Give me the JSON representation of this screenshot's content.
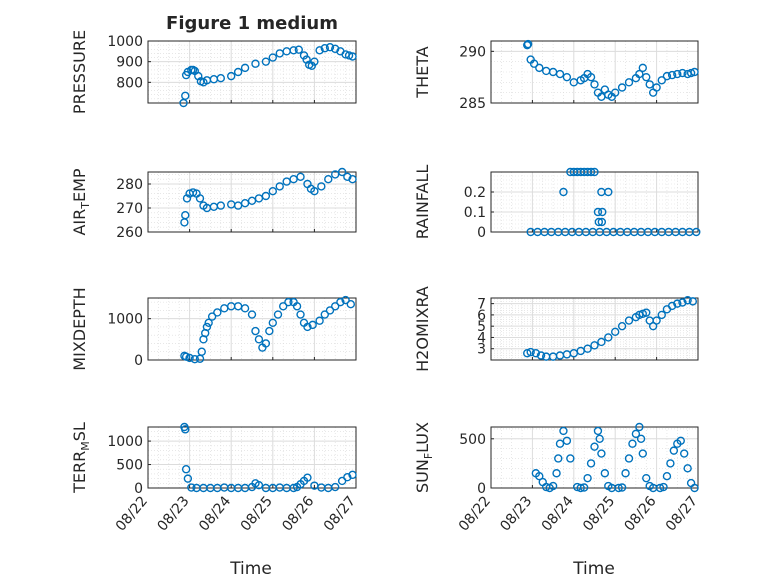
{
  "figure": {
    "title": "Figure 1 medium"
  },
  "colors": {
    "marker": "#0072BD",
    "axis": "#262626",
    "grid": "#d9d9d9"
  },
  "x_axis": {
    "range": [
      "2021-08-22",
      "2021-08-27"
    ],
    "tick_labels": [
      "08/22",
      "08/23",
      "08/24",
      "08/25",
      "08/26",
      "08/27"
    ],
    "label": "Time"
  },
  "chart_data": [
    {
      "type": "scatter",
      "name": "pressure",
      "ylabel": "PRESSURE",
      "ylim": [
        700,
        1000
      ],
      "yticks": [
        800,
        900,
        1000
      ],
      "grid": true,
      "x": [
        "08/22 20:30",
        "08/22 21:30",
        "08/22 22:00",
        "08/22 23:00",
        "08/23 01:00",
        "08/23 02:00",
        "08/23 03:00",
        "08/23 05:00",
        "08/23 06:30",
        "08/23 08:00",
        "08/23 10:00",
        "08/23 14:00",
        "08/23 18:00",
        "08/24 00:00",
        "08/24 04:00",
        "08/24 08:00",
        "08/24 14:00",
        "08/24 20:00",
        "08/25 00:00",
        "08/25 04:00",
        "08/25 08:00",
        "08/25 12:00",
        "08/25 15:00",
        "08/25 18:00",
        "08/25 19:30",
        "08/25 21:00",
        "08/25 22:30",
        "08/26 00:00",
        "08/26 03:00",
        "08/26 06:00",
        "08/26 09:00",
        "08/26 12:00",
        "08/26 15:00",
        "08/26 18:00",
        "08/26 20:00",
        "08/26 22:00"
      ],
      "y": [
        700,
        735,
        835,
        850,
        860,
        860,
        855,
        830,
        805,
        800,
        810,
        815,
        820,
        830,
        850,
        870,
        890,
        900,
        920,
        940,
        950,
        955,
        958,
        930,
        910,
        885,
        880,
        900,
        955,
        965,
        970,
        962,
        950,
        935,
        930,
        925
      ]
    },
    {
      "type": "scatter",
      "name": "theta",
      "ylabel": "THETA",
      "ylim": [
        285,
        291
      ],
      "yticks": [
        285,
        290
      ],
      "grid": true,
      "x": [
        "08/22 21:00",
        "08/22 21:30",
        "08/22 23:00",
        "08/23 01:00",
        "08/23 04:00",
        "08/23 08:00",
        "08/23 12:00",
        "08/23 16:00",
        "08/23 20:00",
        "08/24 00:00",
        "08/24 04:00",
        "08/24 06:00",
        "08/24 08:00",
        "08/24 10:00",
        "08/24 12:00",
        "08/24 14:00",
        "08/24 16:00",
        "08/24 18:00",
        "08/24 20:00",
        "08/24 22:00",
        "08/25 00:00",
        "08/25 04:00",
        "08/25 08:00",
        "08/25 12:00",
        "08/25 14:00",
        "08/25 16:00",
        "08/25 18:00",
        "08/25 20:00",
        "08/25 22:00",
        "08/26 00:00",
        "08/26 03:00",
        "08/26 06:00",
        "08/26 09:00",
        "08/26 12:00",
        "08/26 15:00",
        "08/26 18:00",
        "08/26 20:00",
        "08/26 22:00"
      ],
      "y": [
        290.6,
        290.7,
        289.2,
        288.8,
        288.4,
        288.1,
        288.0,
        287.8,
        287.5,
        287.0,
        287.2,
        287.4,
        287.8,
        287.5,
        286.8,
        286.0,
        285.6,
        286.3,
        285.8,
        285.6,
        286.0,
        286.5,
        287.0,
        287.4,
        287.8,
        288.4,
        287.5,
        286.8,
        286.0,
        286.5,
        287.2,
        287.6,
        287.7,
        287.8,
        287.9,
        287.8,
        287.9,
        288.0
      ]
    },
    {
      "type": "scatter",
      "name": "air_temp",
      "ylabel": "AIR_TEMP",
      "ylim": [
        260,
        285
      ],
      "yticks": [
        260,
        270,
        280
      ],
      "grid": true,
      "x": [
        "08/22 21:00",
        "08/22 21:30",
        "08/22 22:30",
        "08/23 00:00",
        "08/23 02:00",
        "08/23 04:00",
        "08/23 06:00",
        "08/23 08:00",
        "08/23 10:00",
        "08/23 14:00",
        "08/23 18:00",
        "08/24 00:00",
        "08/24 04:00",
        "08/24 08:00",
        "08/24 12:00",
        "08/24 16:00",
        "08/24 20:00",
        "08/25 00:00",
        "08/25 04:00",
        "08/25 08:00",
        "08/25 12:00",
        "08/25 16:00",
        "08/25 20:00",
        "08/25 22:00",
        "08/26 00:00",
        "08/26 04:00",
        "08/26 08:00",
        "08/26 12:00",
        "08/26 16:00",
        "08/26 19:00",
        "08/26 22:00"
      ],
      "y": [
        264,
        267,
        274,
        276,
        276.5,
        276,
        274,
        271,
        270,
        270.5,
        271,
        271.5,
        271,
        272,
        273,
        274,
        275,
        277,
        279,
        281,
        282,
        283,
        280,
        278,
        277,
        279,
        282,
        284,
        285,
        283,
        282
      ]
    },
    {
      "type": "scatter",
      "name": "rainfall",
      "ylabel": "RAINFALL",
      "ylim": [
        0,
        0.3
      ],
      "yticks": [
        0,
        0.1,
        0.2
      ],
      "grid": true,
      "x": [
        "08/22 23:00",
        "08/23 03:00",
        "08/23 07:00",
        "08/23 11:00",
        "08/23 15:00",
        "08/23 19:00",
        "08/23 23:00",
        "08/24 03:00",
        "08/24 07:00",
        "08/24 11:00",
        "08/24 15:00",
        "08/24 19:00",
        "08/24 23:00",
        "08/25 03:00",
        "08/25 07:00",
        "08/25 11:00",
        "08/25 15:00",
        "08/25 19:00",
        "08/25 23:00",
        "08/26 03:00",
        "08/26 07:00",
        "08/26 11:00",
        "08/26 15:00",
        "08/26 19:00",
        "08/26 23:00",
        "08/23 22:00",
        "08/24 00:00",
        "08/24 02:00",
        "08/24 04:00",
        "08/24 06:00",
        "08/24 08:00",
        "08/24 10:00",
        "08/24 12:00",
        "08/23 18:00",
        "08/24 16:00",
        "08/24 20:00",
        "08/24 14:00",
        "08/24 16:30",
        "08/24 14:30",
        "08/24 16:15"
      ],
      "y": [
        0,
        0,
        0,
        0,
        0,
        0,
        0,
        0,
        0,
        0,
        0,
        0,
        0,
        0,
        0,
        0,
        0,
        0,
        0,
        0,
        0,
        0,
        0,
        0,
        0,
        0.3,
        0.3,
        0.3,
        0.3,
        0.3,
        0.3,
        0.3,
        0.3,
        0.2,
        0.2,
        0.2,
        0.1,
        0.1,
        0.05,
        0.05
      ]
    },
    {
      "type": "scatter",
      "name": "mixdepth",
      "ylabel": "MIXDEPTH",
      "ylim": [
        0,
        1500
      ],
      "yticks": [
        0,
        1000
      ],
      "grid": true,
      "x": [
        "08/22 21:00",
        "08/22 22:00",
        "08/23 00:00",
        "08/23 03:00",
        "08/23 06:00",
        "08/23 07:00",
        "08/23 08:00",
        "08/23 09:00",
        "08/23 10:00",
        "08/23 11:00",
        "08/23 13:00",
        "08/23 16:00",
        "08/23 20:00",
        "08/24 00:00",
        "08/24 04:00",
        "08/24 08:00",
        "08/24 12:00",
        "08/24 14:00",
        "08/24 16:00",
        "08/24 18:00",
        "08/24 20:00",
        "08/24 22:00",
        "08/25 00:00",
        "08/25 03:00",
        "08/25 06:00",
        "08/25 09:00",
        "08/25 12:00",
        "08/25 14:00",
        "08/25 16:00",
        "08/25 18:00",
        "08/25 20:00",
        "08/25 23:00",
        "08/26 03:00",
        "08/26 06:00",
        "08/26 09:00",
        "08/26 12:00",
        "08/26 15:00",
        "08/26 18:00",
        "08/26 21:00"
      ],
      "y": [
        100,
        80,
        50,
        20,
        30,
        200,
        500,
        650,
        800,
        900,
        1050,
        1150,
        1250,
        1300,
        1300,
        1250,
        1100,
        700,
        500,
        300,
        400,
        700,
        900,
        1100,
        1300,
        1400,
        1400,
        1300,
        1100,
        900,
        800,
        850,
        950,
        1100,
        1200,
        1300,
        1400,
        1450,
        1350
      ]
    },
    {
      "type": "scatter",
      "name": "h2omixra",
      "ylabel": "H2OMIXRA",
      "ylim": [
        2,
        7.5
      ],
      "yticks": [
        3,
        4,
        5,
        6,
        7
      ],
      "grid": true,
      "x": [
        "08/22 21:00",
        "08/22 23:00",
        "08/23 02:00",
        "08/23 05:00",
        "08/23 08:00",
        "08/23 12:00",
        "08/23 16:00",
        "08/23 20:00",
        "08/24 00:00",
        "08/24 04:00",
        "08/24 08:00",
        "08/24 12:00",
        "08/24 16:00",
        "08/24 20:00",
        "08/25 00:00",
        "08/25 04:00",
        "08/25 08:00",
        "08/25 12:00",
        "08/25 14:00",
        "08/25 16:00",
        "08/25 18:00",
        "08/25 20:00",
        "08/25 22:00",
        "08/26 00:00",
        "08/26 03:00",
        "08/26 06:00",
        "08/26 09:00",
        "08/26 12:00",
        "08/26 15:00",
        "08/26 18:00",
        "08/26 21:00"
      ],
      "y": [
        2.6,
        2.7,
        2.6,
        2.4,
        2.3,
        2.3,
        2.4,
        2.5,
        2.6,
        2.8,
        3.0,
        3.3,
        3.6,
        4.0,
        4.5,
        5.0,
        5.5,
        5.8,
        6.0,
        6.1,
        6.2,
        5.5,
        5.0,
        5.5,
        6.0,
        6.5,
        6.8,
        7.0,
        7.1,
        7.3,
        7.2
      ]
    },
    {
      "type": "scatter",
      "name": "terr_msl",
      "ylabel": "TERR_MSL",
      "ylim": [
        0,
        1300
      ],
      "yticks": [
        0,
        500,
        1000
      ],
      "grid": true,
      "x": [
        "08/22 21:00",
        "08/22 21:30",
        "08/22 22:00",
        "08/22 23:00",
        "08/23 01:00",
        "08/23 04:00",
        "08/23 08:00",
        "08/23 12:00",
        "08/23 16:00",
        "08/23 20:00",
        "08/24 00:00",
        "08/24 04:00",
        "08/24 08:00",
        "08/24 12:00",
        "08/24 14:00",
        "08/24 16:00",
        "08/24 20:00",
        "08/25 00:00",
        "08/25 04:00",
        "08/25 08:00",
        "08/25 12:00",
        "08/25 14:00",
        "08/25 16:00",
        "08/25 18:00",
        "08/25 20:00",
        "08/26 00:00",
        "08/26 04:00",
        "08/26 08:00",
        "08/26 12:00",
        "08/26 16:00",
        "08/26 19:00",
        "08/26 22:00"
      ],
      "y": [
        1300,
        1250,
        400,
        200,
        10,
        0,
        0,
        0,
        0,
        10,
        0,
        0,
        0,
        20,
        100,
        60,
        0,
        0,
        10,
        0,
        0,
        20,
        80,
        150,
        220,
        50,
        10,
        0,
        20,
        150,
        230,
        280
      ]
    },
    {
      "type": "scatter",
      "name": "sun_flux",
      "ylabel": "SUN_FLUX",
      "ylim": [
        0,
        620
      ],
      "yticks": [
        0,
        500
      ],
      "grid": true,
      "x": [
        "08/23 02:00",
        "08/23 04:00",
        "08/23 06:00",
        "08/23 08:00",
        "08/23 10:00",
        "08/23 12:00",
        "08/23 14:00",
        "08/23 15:00",
        "08/23 16:00",
        "08/23 18:00",
        "08/23 20:00",
        "08/23 22:00",
        "08/24 02:00",
        "08/24 04:00",
        "08/24 06:00",
        "08/24 08:00",
        "08/24 10:00",
        "08/24 12:00",
        "08/24 14:00",
        "08/24 15:00",
        "08/24 16:00",
        "08/24 18:00",
        "08/24 20:00",
        "08/24 22:00",
        "08/25 02:00",
        "08/25 04:00",
        "08/25 06:00",
        "08/25 08:00",
        "08/25 10:00",
        "08/25 12:00",
        "08/25 14:00",
        "08/25 15:00",
        "08/25 16:00",
        "08/25 18:00",
        "08/25 20:00",
        "08/25 22:00",
        "08/26 02:00",
        "08/26 04:00",
        "08/26 06:00",
        "08/26 08:00",
        "08/26 10:00",
        "08/26 12:00",
        "08/26 14:00",
        "08/26 16:00",
        "08/26 18:00",
        "08/26 20:00",
        "08/26 22:00"
      ],
      "y": [
        150,
        120,
        60,
        10,
        0,
        20,
        150,
        300,
        450,
        580,
        480,
        300,
        10,
        0,
        5,
        100,
        250,
        420,
        580,
        500,
        350,
        150,
        20,
        0,
        0,
        5,
        150,
        300,
        450,
        550,
        620,
        500,
        350,
        100,
        20,
        0,
        0,
        10,
        120,
        250,
        380,
        450,
        480,
        350,
        200,
        50,
        0
      ]
    }
  ]
}
